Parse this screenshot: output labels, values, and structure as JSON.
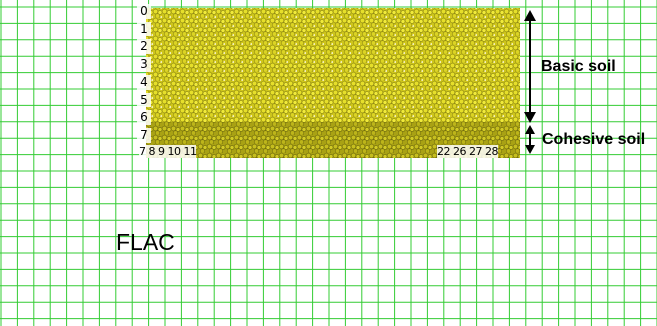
{
  "labels": {
    "flac": "FLAC",
    "basic_soil": "Basic soil",
    "cohesive_soil": "Cohesive soil"
  },
  "depth_ticks": [
    "0",
    "1",
    "2",
    "3",
    "4",
    "5",
    "6",
    "7"
  ],
  "bottom_ticks_left": "7 8 9 10 11",
  "bottom_ticks_right": "22 26 27 28",
  "colors": {
    "grid": "#33cc33",
    "basic_soil": "#d8d020",
    "cohesive_soil": "#b8b018",
    "arrow": "#000000"
  }
}
